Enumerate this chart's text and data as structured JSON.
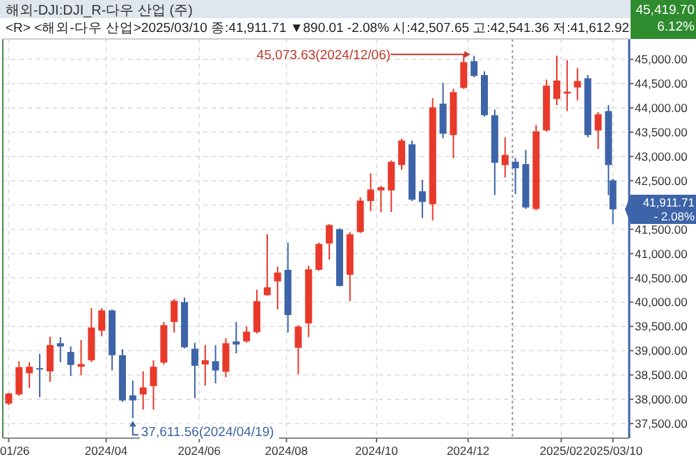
{
  "chart_data": {
    "type": "candlestick",
    "title": "해외-DJI:DJI_R-다우 산업 (주)",
    "subtitle": "<R> <해외-다우 산업>2025/03/10 종:41,911.71 ▼890.01 -2.08% 시:42,507.65 고:42,541.36 저:41,612.92",
    "x": [
      "2024-01-26",
      "2024-02-02",
      "2024-02-09",
      "2024-02-16",
      "2024-02-23",
      "2024-03-01",
      "2024-03-08",
      "2024-03-15",
      "2024-03-22",
      "2024-03-29",
      "2024-04-05",
      "2024-04-12",
      "2024-04-19",
      "2024-04-26",
      "2024-05-03",
      "2024-05-10",
      "2024-05-17",
      "2024-05-24",
      "2024-05-31",
      "2024-06-07",
      "2024-06-14",
      "2024-06-21",
      "2024-06-28",
      "2024-07-05",
      "2024-07-12",
      "2024-07-19",
      "2024-07-26",
      "2024-08-02",
      "2024-08-09",
      "2024-08-16",
      "2024-08-23",
      "2024-08-30",
      "2024-09-06",
      "2024-09-13",
      "2024-09-20",
      "2024-09-27",
      "2024-10-04",
      "2024-10-11",
      "2024-10-18",
      "2024-10-25",
      "2024-11-01",
      "2024-11-08",
      "2024-11-15",
      "2024-11-22",
      "2024-11-29",
      "2024-12-06",
      "2024-12-13",
      "2024-12-20",
      "2024-12-27",
      "2025-01-03",
      "2025-01-10",
      "2025-01-17",
      "2025-01-24",
      "2025-01-31",
      "2025-02-07",
      "2025-02-14",
      "2025-02-21",
      "2025-02-28",
      "2025-03-07",
      "2025-03-10"
    ],
    "ohlc": [
      [
        37910,
        38130,
        37880,
        38119
      ],
      [
        38100,
        38784,
        38071,
        38661
      ],
      [
        38537,
        38765,
        38233,
        38670
      ],
      [
        38642,
        38936,
        38043,
        38613
      ],
      [
        38575,
        39288,
        38357,
        39117
      ],
      [
        39155,
        39279,
        38765,
        39088
      ],
      [
        38974,
        39088,
        38480,
        38708
      ],
      [
        38670,
        39222,
        38499,
        38727
      ],
      [
        38803,
        39877,
        38765,
        39478
      ],
      [
        39412,
        39877,
        39297,
        39830
      ],
      [
        39830,
        39849,
        38594,
        38908
      ],
      [
        38908,
        39032,
        37948,
        37977
      ],
      [
        38081,
        38385,
        37611.56,
        37977
      ],
      [
        38100,
        38575,
        37786,
        38243
      ],
      [
        38271,
        38803,
        37786,
        38670
      ],
      [
        38756,
        39592,
        38718,
        39526
      ],
      [
        39592,
        40067,
        39374,
        40029
      ],
      [
        40001,
        40096,
        39051,
        39070
      ],
      [
        39041,
        39165,
        38024,
        38690
      ],
      [
        38718,
        39117,
        38281,
        38803
      ],
      [
        38784,
        39117,
        38328,
        38594
      ],
      [
        38566,
        39260,
        38452,
        39155
      ],
      [
        39193,
        39592,
        38946,
        39127
      ],
      [
        39193,
        39497,
        39165,
        39393
      ],
      [
        39383,
        40257,
        39355,
        40020
      ],
      [
        40143,
        41398,
        40134,
        40305
      ],
      [
        40428,
        40733,
        39849,
        40609
      ],
      [
        40666,
        41227,
        39374,
        39735
      ],
      [
        39060,
        39526,
        38518,
        39497
      ],
      [
        39564,
        40752,
        39279,
        40676
      ],
      [
        40666,
        41227,
        40647,
        41198
      ],
      [
        41208,
        41607,
        40875,
        41588
      ],
      [
        41502,
        41521,
        40324,
        40333
      ],
      [
        40562,
        41445,
        40020,
        41398
      ],
      [
        41445,
        42158,
        41426,
        42092
      ],
      [
        42082,
        42652,
        41873,
        42320
      ],
      [
        42301,
        42396,
        41854,
        42367
      ],
      [
        42301,
        42918,
        41854,
        42890
      ],
      [
        42823,
        43365,
        42728,
        43327
      ],
      [
        43251,
        43327,
        42082,
        42111
      ],
      [
        42282,
        42519,
        41730,
        42063
      ],
      [
        42016,
        44202,
        41683,
        44011
      ],
      [
        44087,
        44515,
        43375,
        43470
      ],
      [
        43441,
        44392,
        42966,
        44325
      ],
      [
        44411,
        45105,
        44392,
        44943
      ],
      [
        44962,
        45073.63,
        44629,
        44658
      ],
      [
        44677,
        44753,
        43821,
        43850
      ],
      [
        43850,
        43964,
        42206,
        42871
      ],
      [
        42823,
        43394,
        42567,
        43033
      ],
      [
        42890,
        42966,
        42225,
        42757
      ],
      [
        42842,
        43137,
        41920,
        41949
      ],
      [
        41920,
        43650,
        41892,
        43517
      ],
      [
        43536,
        44582,
        43517,
        44458
      ],
      [
        44183,
        45076,
        44059,
        44563
      ],
      [
        44296,
        44981,
        43935,
        44335
      ],
      [
        44420,
        44819,
        44154,
        44553
      ],
      [
        44610,
        44677,
        43394,
        43441
      ],
      [
        43536,
        43916,
        43156,
        43869
      ],
      [
        43935,
        44059,
        42206,
        42823
      ],
      [
        42507.65,
        42541.36,
        41612.92,
        41911.71
      ]
    ],
    "colors": [
      "#e8392a",
      "#e8392a",
      "#e8392a",
      "#3d64a8",
      "#e8392a",
      "#3d64a8",
      "#3d64a8",
      "#e8392a",
      "#e8392a",
      "#e8392a",
      "#3d64a8",
      "#3d64a8",
      "#3d64a8",
      "#e8392a",
      "#e8392a",
      "#e8392a",
      "#e8392a",
      "#3d64a8",
      "#3d64a8",
      "#e8392a",
      "#3d64a8",
      "#e8392a",
      "#3d64a8",
      "#e8392a",
      "#e8392a",
      "#e8392a",
      "#e8392a",
      "#3d64a8",
      "#e8392a",
      "#e8392a",
      "#e8392a",
      "#e8392a",
      "#3d64a8",
      "#e8392a",
      "#e8392a",
      "#e8392a",
      "#e8392a",
      "#e8392a",
      "#e8392a",
      "#3d64a8",
      "#3d64a8",
      "#e8392a",
      "#3d64a8",
      "#e8392a",
      "#e8392a",
      "#3d64a8",
      "#3d64a8",
      "#3d64a8",
      "#e8392a",
      "#3d64a8",
      "#3d64a8",
      "#e8392a",
      "#e8392a",
      "#e8392a",
      "#e8392a",
      "#e8392a",
      "#3d64a8",
      "#e8392a",
      "#3d64a8",
      "#3d64a8"
    ],
    "xlim": [
      "2024-01-22",
      "2025-03-21"
    ],
    "xticks": [
      {
        "value": "2024-01-26",
        "label": "01/26"
      },
      {
        "value": "2024-04-01",
        "label": "2024/04"
      },
      {
        "value": "2024-06-03",
        "label": "2024/06"
      },
      {
        "value": "2024-08-01",
        "label": "2024/08"
      },
      {
        "value": "2024-10-01",
        "label": "2024/10"
      },
      {
        "value": "2024-12-02",
        "label": "2024/12"
      },
      {
        "value": "2025-02-03",
        "label": "2025/02"
      },
      {
        "value": "2025-03-10",
        "label": "2025/03/10"
      }
    ],
    "ylim": [
      37200,
      45420
    ],
    "yticks": [
      {
        "value": 37500,
        "label": "37,500.00"
      },
      {
        "value": 38000,
        "label": "38,000.00"
      },
      {
        "value": 38500,
        "label": "38,500.00"
      },
      {
        "value": 39000,
        "label": "39,000.00"
      },
      {
        "value": 39500,
        "label": "39,500.00"
      },
      {
        "value": 40000,
        "label": "40,000.00"
      },
      {
        "value": 40500,
        "label": "40,500.00"
      },
      {
        "value": 41000,
        "label": "41,000.00"
      },
      {
        "value": 41500,
        "label": "41,500.00"
      },
      {
        "value": 42000,
        "label": null
      },
      {
        "value": 42500,
        "label": "42,500.00"
      },
      {
        "value": 43000,
        "label": "43,000.00"
      },
      {
        "value": 43500,
        "label": "43,500.00"
      },
      {
        "value": 44000,
        "label": "44,000.00"
      },
      {
        "value": 44500,
        "label": "44,500.00"
      },
      {
        "value": 45000,
        "label": "45,000.00"
      }
    ],
    "grid": true,
    "ref_lines": [
      {
        "axis": "x",
        "value": "2025-01-01",
        "color": "#999999",
        "line_style": "dotted"
      }
    ],
    "annotations": [
      {
        "text": "45,073.63(2024/12/06)",
        "x": "2024-12-06",
        "y": 45073.63
      },
      {
        "text": "37,611.56(2024/04/19)",
        "x": "2024-04-19",
        "y": 37611.56
      },
      {
        "text": "41,911.71\n- 2.08%",
        "x": "2025-03-10",
        "y": 41911.71
      },
      "45,419.70\n6.12%"
    ]
  }
}
